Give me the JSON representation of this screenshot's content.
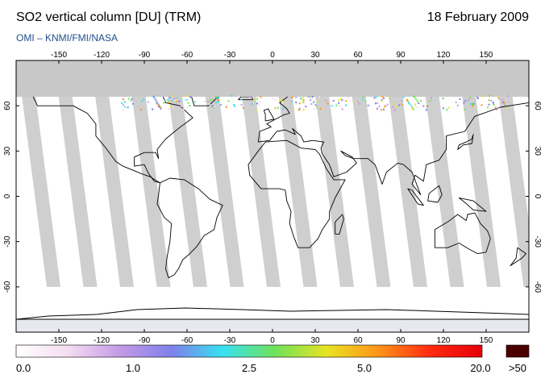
{
  "header": {
    "title": "SO2 vertical column [DU] (TRM)",
    "date": "18 February 2009",
    "subtitle": "OMI  –  KNMI/FMI/NASA"
  },
  "map": {
    "projection": "equirectangular",
    "lon_range": [
      -180,
      180
    ],
    "lat_range": [
      -90,
      90
    ],
    "lon_ticks": [
      "-150",
      "-120",
      "-90",
      "-60",
      "-30",
      "0",
      "30",
      "60",
      "90",
      "120",
      "150"
    ],
    "lat_ticks": [
      "60",
      "30",
      "0",
      "-30",
      "-60"
    ],
    "colors": {
      "no_data": "#c8c8c8",
      "land": "#a9a9a9",
      "background": "#ffffff",
      "coast": "#000000"
    }
  },
  "colorbar": {
    "labels": [
      "0.0",
      "1.0",
      "2.5",
      "5.0",
      "20.0"
    ],
    "overflow_label": ">50",
    "colors": [
      "#ffffff",
      "#f4ddf0",
      "#c59ae6",
      "#7f80ea",
      "#37e2f0",
      "#6fe25a",
      "#e8e323",
      "#ff9418",
      "#ff2a10",
      "#e5000a"
    ],
    "overflow_color": "#4b0000"
  }
}
